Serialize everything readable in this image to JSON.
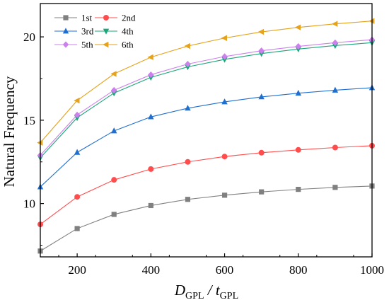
{
  "chart_data": {
    "type": "line",
    "x": [
      100,
      200,
      300,
      400,
      500,
      600,
      700,
      800,
      900,
      1000
    ],
    "xlim": [
      100,
      1000
    ],
    "ylim": [
      6.8,
      22
    ],
    "xticks": [
      200,
      400,
      600,
      800,
      1000
    ],
    "yticks": [
      10,
      15,
      20
    ],
    "ylabel": "Natural Frequency",
    "xlabel": {
      "main": "D",
      "sub1": "GPL",
      "sep": " / t",
      "sub2": "GPL"
    },
    "grid": false,
    "legend_position": "top-left",
    "series": [
      {
        "name": "1st",
        "color": "#808080",
        "marker": "square",
        "values": [
          7.15,
          8.5,
          9.35,
          9.88,
          10.25,
          10.5,
          10.7,
          10.85,
          10.97,
          11.05
        ]
      },
      {
        "name": "2nd",
        "color": "#ff4d4d",
        "marker": "circle",
        "values": [
          8.75,
          10.4,
          11.42,
          12.07,
          12.5,
          12.82,
          13.05,
          13.22,
          13.36,
          13.47
        ]
      },
      {
        "name": "3rd",
        "color": "#1f6fd0",
        "marker": "triangle-up",
        "values": [
          11.0,
          13.07,
          14.36,
          15.2,
          15.72,
          16.1,
          16.4,
          16.62,
          16.8,
          16.95
        ]
      },
      {
        "name": "4th",
        "color": "#1aa57a",
        "marker": "triangle-down",
        "values": [
          12.75,
          15.15,
          16.63,
          17.57,
          18.2,
          18.65,
          19.0,
          19.27,
          19.48,
          19.65
        ]
      },
      {
        "name": "5th",
        "color": "#cc80ee",
        "marker": "diamond",
        "values": [
          12.9,
          15.32,
          16.8,
          17.73,
          18.37,
          18.82,
          19.17,
          19.43,
          19.65,
          19.83
        ]
      },
      {
        "name": "6th",
        "color": "#e5a21a",
        "marker": "triangle-left",
        "values": [
          13.65,
          16.18,
          17.78,
          18.78,
          19.45,
          19.93,
          20.3,
          20.57,
          20.78,
          20.95
        ]
      }
    ]
  }
}
